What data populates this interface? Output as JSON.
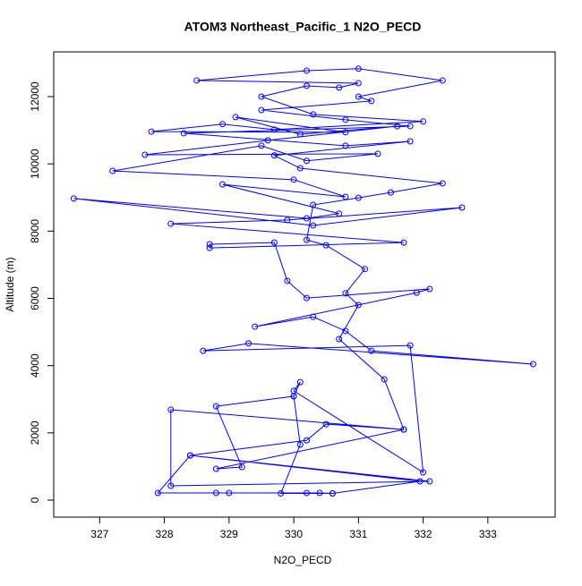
{
  "chart_data": {
    "type": "line",
    "title": "ATOM3 Northeast_Pacific_1 N2O_PECD",
    "x_label": "N2O_PECD",
    "y_label": "Altitude (m)",
    "series": [
      {
        "color": "#0000ff",
        "x": [
          330.6,
          331.95,
          328.4,
          330.2,
          330.5,
          331.7,
          331.4,
          330.7,
          331.0,
          330.8,
          331.1,
          330.5,
          330.2,
          330.3,
          331.0,
          331.5,
          332.3,
          330.1,
          329.7,
          331.8,
          330.8,
          328.3,
          331.8,
          330.8,
          329.5,
          331.2,
          331.0,
          332.3,
          331.0,
          330.2,
          328.5,
          331.0,
          330.7,
          330.2,
          329.5,
          330.3,
          332.0,
          329.7,
          328.9,
          327.8,
          330.8,
          329.1,
          330.1,
          331.6,
          329.6,
          327.7,
          331.3,
          330.2,
          329.5,
          327.2,
          330.0,
          330.8,
          328.9,
          330.7,
          330.2,
          326.6,
          330.3,
          332.6,
          329.9,
          328.1,
          331.7,
          328.7,
          328.7,
          329.7,
          329.9,
          330.2,
          332.1,
          331.9,
          329.4,
          330.3,
          330.8,
          331.2,
          333.7,
          329.3,
          328.6,
          331.8,
          332.0,
          330.0,
          330.1,
          330.0,
          328.8,
          329.2,
          328.8,
          331.7,
          328.1,
          328.1,
          332.1,
          328.4,
          327.9,
          329.0,
          328.8,
          330.2,
          330.4,
          330.6,
          329.8,
          330.1,
          330.0
        ],
        "values": [
          200,
          560,
          1330,
          1780,
          2260,
          2100,
          3590,
          4790,
          5800,
          6150,
          6870,
          7580,
          7740,
          8780,
          8990,
          9150,
          9420,
          9870,
          10250,
          10670,
          10540,
          10910,
          11120,
          11310,
          11600,
          11870,
          12000,
          12480,
          12830,
          12770,
          12480,
          12400,
          12270,
          12320,
          12000,
          11470,
          11260,
          11020,
          11180,
          10960,
          10940,
          11390,
          10880,
          11120,
          10700,
          10270,
          10300,
          10090,
          10540,
          9790,
          9530,
          9020,
          9390,
          8520,
          8380,
          8970,
          8170,
          8700,
          8330,
          8220,
          7660,
          7500,
          7610,
          7660,
          6520,
          6010,
          6280,
          6170,
          5160,
          5450,
          5030,
          4440,
          4045,
          4660,
          4440,
          4600,
          825,
          3250,
          3510,
          3090,
          2790,
          985,
          931,
          2100,
          2690,
          426,
          560,
          1330,
          213,
          213,
          213,
          213,
          213,
          200,
          200,
          1650,
          3090
        ]
      }
    ],
    "xlim": [
      326.29,
      334.04
    ],
    "ylim": [
      -505,
      13330
    ],
    "xticks": [
      327,
      328,
      329,
      330,
      331,
      332,
      333
    ],
    "yticks": [
      0,
      2000,
      4000,
      6000,
      8000,
      10000,
      12000
    ]
  }
}
